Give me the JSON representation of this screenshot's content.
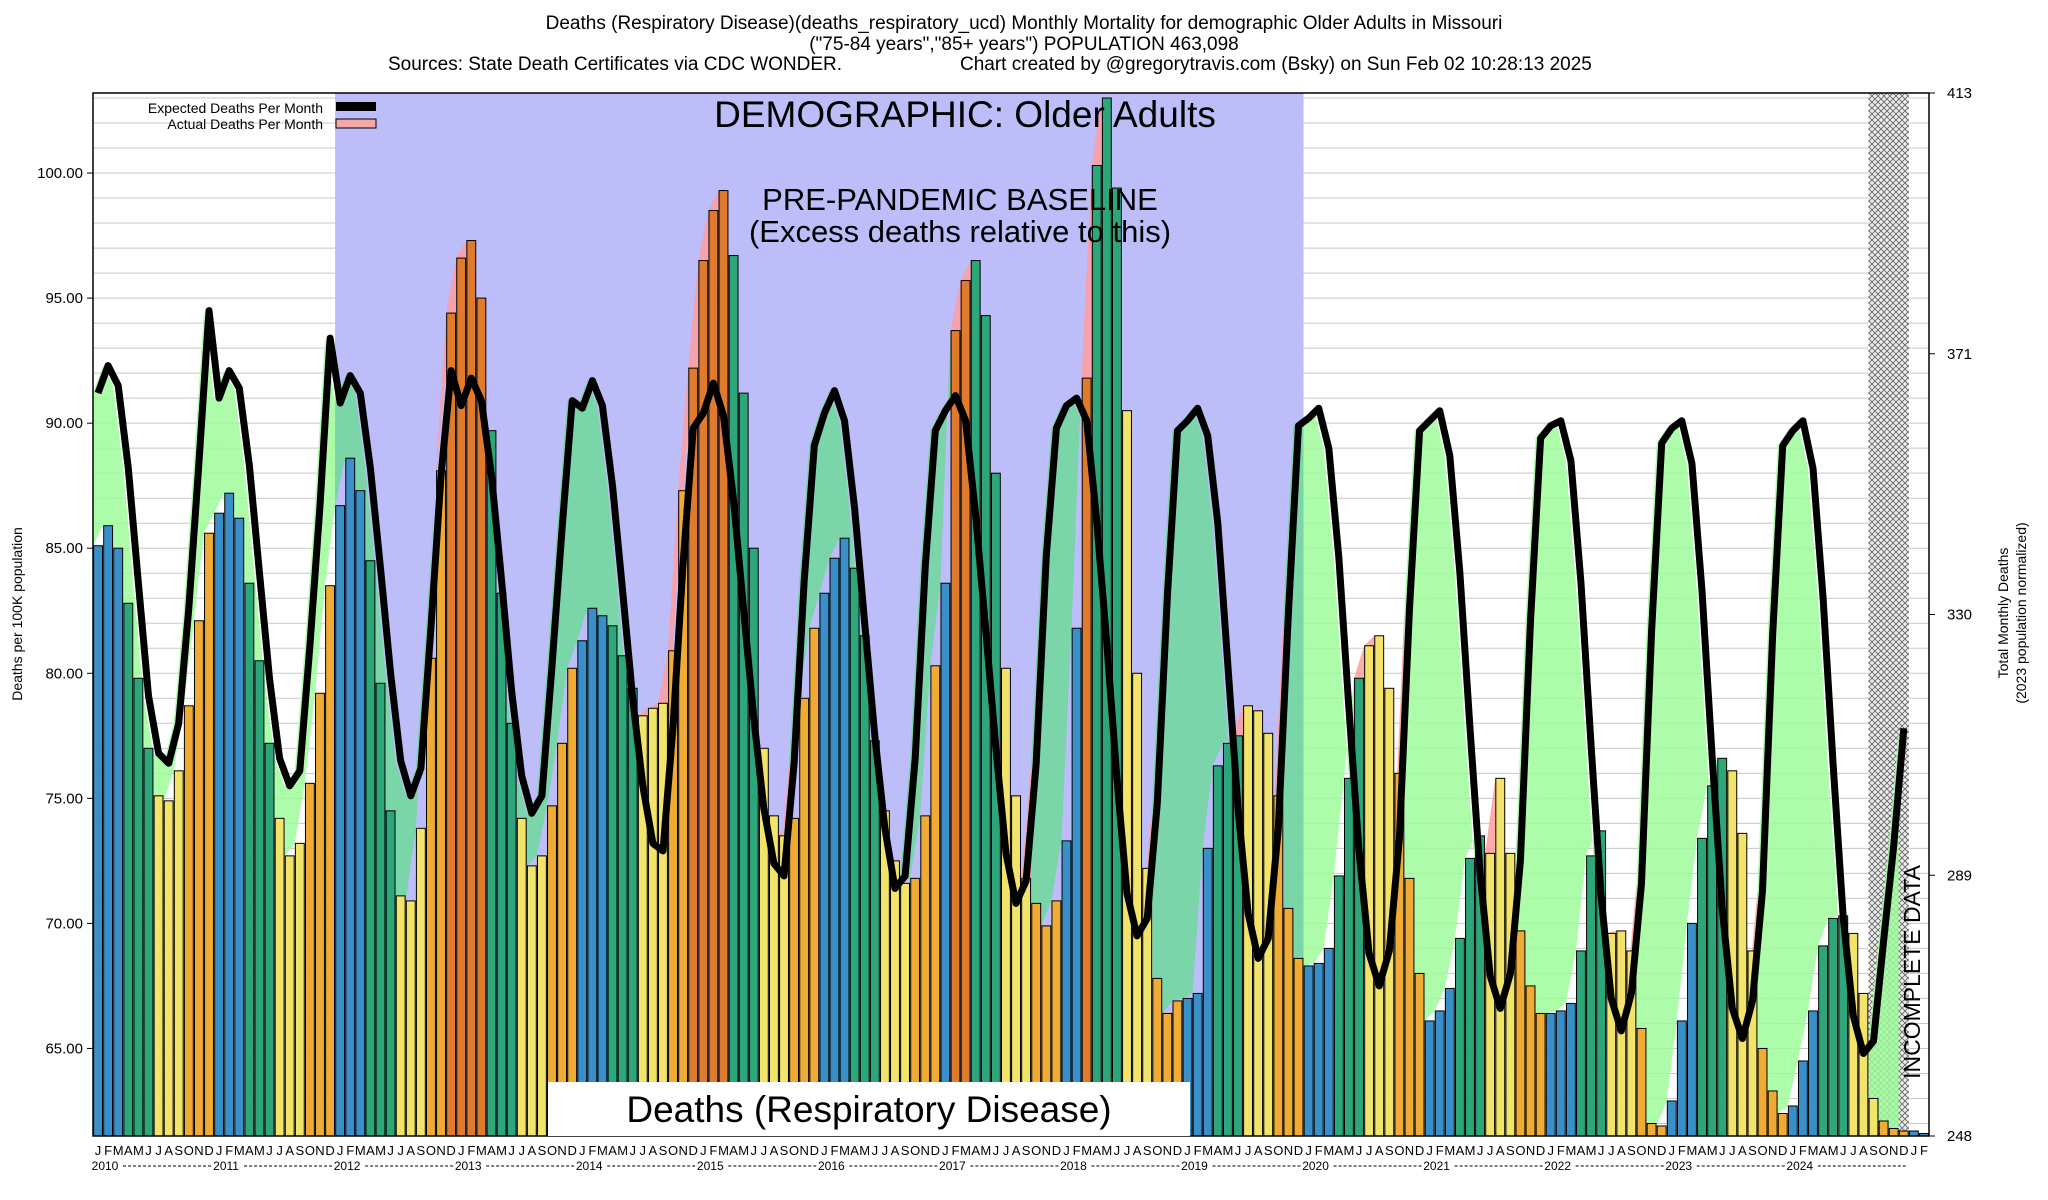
{
  "header": {
    "title_line1": "Deaths (Respiratory Disease)(deaths_respiratory_ucd) Monthly Mortality for demographic Older Adults in Missouri",
    "title_line2": "(\"75-84 years\",\"85+ years\") POPULATION 463,098",
    "sources": "Sources: State Death Certificates via CDC WONDER.",
    "credit": "Chart created by @gregorytravis.com (Bsky) on Sun Feb 02 10:28:13 2025"
  },
  "chart_data": {
    "type": "bar",
    "title": "Deaths (Respiratory Disease)",
    "demographic_label": "DEMOGRAPHIC: Older Adults",
    "baseline_label_1": "PRE-PANDEMIC BASELINE",
    "baseline_label_2": "(Excess deaths relative to this)",
    "incomplete_label": "INCOMPLETE DATA",
    "ylabel": "Deaths per 100K population",
    "ylabel_right_1": "Total Monthly Deaths",
    "ylabel_right_2": "(2023 population normalized)",
    "ylim": [
      61.5,
      103.2
    ],
    "left_ticks": [
      "65.00",
      "70.00",
      "75.00",
      "80.00",
      "85.00",
      "90.00",
      "95.00",
      "100.00"
    ],
    "right_ticks": [
      "248",
      "289",
      "330",
      "371",
      "413"
    ],
    "month_letters": [
      "J",
      "F",
      "M",
      "A",
      "M",
      "J",
      "J",
      "A",
      "S",
      "O",
      "N",
      "D"
    ],
    "years": [
      "2010",
      "2011",
      "2012",
      "2013",
      "2014",
      "2015",
      "2016",
      "2017",
      "2018",
      "2019",
      "2020",
      "2021",
      "2022",
      "2023",
      "2024"
    ],
    "baseline_period": [
      "2012-01",
      "2019-12"
    ],
    "incomplete_period": [
      "2024-09",
      "2024-12"
    ],
    "legend": [
      "Expected Deaths Per Month",
      "Actual Deaths Per Month"
    ],
    "colors": {
      "winter_bar": "#3a8fc9",
      "spring_bar": "#2da77a",
      "summer_bar": "#f2e46a",
      "fall_bar": "#f0ab35",
      "expected_line": "#000000",
      "below_fill": "#9dfc9b",
      "below_fill_baseline": "#6fd99a",
      "excess_fill": "#ff9d9d",
      "baseline_band": "#bdbdfa",
      "incomplete_band": "#e9e9e9"
    },
    "series": [
      {
        "name": "Actual Deaths Per Month",
        "values": [
          85.1,
          85.9,
          85.0,
          82.8,
          79.8,
          77.0,
          75.1,
          74.9,
          76.1,
          78.7,
          82.1,
          85.6,
          86.4,
          87.2,
          86.2,
          83.6,
          80.5,
          77.2,
          74.2,
          72.7,
          73.2,
          75.6,
          79.2,
          83.5,
          86.7,
          88.6,
          87.3,
          84.5,
          79.6,
          74.5,
          71.1,
          70.9,
          73.8,
          80.6,
          88.1,
          94.4,
          96.6,
          97.3,
          95.0,
          89.7,
          83.2,
          78.0,
          74.2,
          72.3,
          72.7,
          74.7,
          77.2,
          80.2,
          81.3,
          82.6,
          82.3,
          81.9,
          80.7,
          79.4,
          78.3,
          78.6,
          78.8,
          80.9,
          87.3,
          92.2,
          96.5,
          98.5,
          99.3,
          96.7,
          91.2,
          85.0,
          77.0,
          74.3,
          73.5,
          74.2,
          79.0,
          81.8,
          83.2,
          84.6,
          85.4,
          84.2,
          81.5,
          77.3,
          74.5,
          72.5,
          71.6,
          71.8,
          74.3,
          80.3,
          83.6,
          93.7,
          95.7,
          96.5,
          94.3,
          88.0,
          80.2,
          75.1,
          71.8,
          70.8,
          69.9,
          70.9,
          73.3,
          81.8,
          91.8,
          100.3,
          103.0,
          99.4,
          90.5,
          80.0,
          72.2,
          67.8,
          66.4,
          66.9,
          67.0,
          67.2,
          73.0,
          76.3,
          77.2,
          77.5,
          78.7,
          78.5,
          77.6,
          75.1,
          70.6,
          68.6,
          68.3,
          68.4,
          69.0,
          71.9,
          75.8,
          79.8,
          81.1,
          81.5,
          79.4,
          76.0,
          71.8,
          68.0,
          66.1,
          66.5,
          67.4,
          69.4,
          72.6,
          73.5,
          72.8,
          75.8,
          72.8,
          69.7,
          67.5,
          66.4,
          66.4,
          66.5,
          66.8,
          68.9,
          72.7,
          73.7,
          69.6,
          69.7,
          68.9,
          65.8,
          62.0,
          61.9,
          62.9,
          66.1,
          70.0,
          73.4,
          75.5,
          76.6,
          76.1,
          73.6,
          68.9,
          65.0,
          63.3,
          62.4,
          62.7,
          64.5,
          66.5,
          69.1,
          70.2,
          70.3,
          69.6,
          67.2,
          63.0,
          62.1,
          61.8,
          61.7,
          61.7,
          61.6
        ]
      },
      {
        "name": "Expected Deaths Per Month",
        "values": [
          91.2,
          92.3,
          91.5,
          88.2,
          83.6,
          79.1,
          76.8,
          76.4,
          78.0,
          82.6,
          88.4,
          94.5,
          91.0,
          92.1,
          91.4,
          88.3,
          84.0,
          79.8,
          76.6,
          75.5,
          76.1,
          81.1,
          86.7,
          93.4,
          90.8,
          91.9,
          91.2,
          88.2,
          84.2,
          80.0,
          76.5,
          75.1,
          76.2,
          81.8,
          87.9,
          92.1,
          90.7,
          91.8,
          90.9,
          87.9,
          83.7,
          79.3,
          75.9,
          74.4,
          75.1,
          80.3,
          85.8,
          90.9,
          90.6,
          91.7,
          90.7,
          87.5,
          83.3,
          79.0,
          75.5,
          73.2,
          72.9,
          77.9,
          84.4,
          89.8,
          90.4,
          91.6,
          90.3,
          86.9,
          82.5,
          78.2,
          74.6,
          72.4,
          71.9,
          76.4,
          83.7,
          89.1,
          90.4,
          91.3,
          90.1,
          86.6,
          82.0,
          77.5,
          73.8,
          71.4,
          71.9,
          76.6,
          84.3,
          89.7,
          90.5,
          91.1,
          90.1,
          86.3,
          81.7,
          77.0,
          72.8,
          70.8,
          71.7,
          76.4,
          84.7,
          89.8,
          90.7,
          91.0,
          90.1,
          86.1,
          81.2,
          75.8,
          71.2,
          69.5,
          70.2,
          74.8,
          83.1,
          89.7,
          90.1,
          90.6,
          89.5,
          86.0,
          80.3,
          74.6,
          70.4,
          68.6,
          69.4,
          73.8,
          82.4,
          89.9,
          90.2,
          90.6,
          89.0,
          84.6,
          78.6,
          72.9,
          68.8,
          67.5,
          68.9,
          73.4,
          82.6,
          89.7,
          90.1,
          90.5,
          88.7,
          84.0,
          77.8,
          72.0,
          67.9,
          66.6,
          68.0,
          72.5,
          82.1,
          89.4,
          89.9,
          90.1,
          88.5,
          83.6,
          77.1,
          71.1,
          67.0,
          65.7,
          67.2,
          71.6,
          81.7,
          89.2,
          89.8,
          90.1,
          88.4,
          83.3,
          76.7,
          70.6,
          66.6,
          65.4,
          66.9,
          71.3,
          81.5,
          89.1,
          89.7,
          90.1,
          88.2,
          83.0,
          76.3,
          70.2,
          66.3,
          64.8,
          65.3,
          69.3,
          73.1,
          77.8
        ]
      }
    ]
  }
}
